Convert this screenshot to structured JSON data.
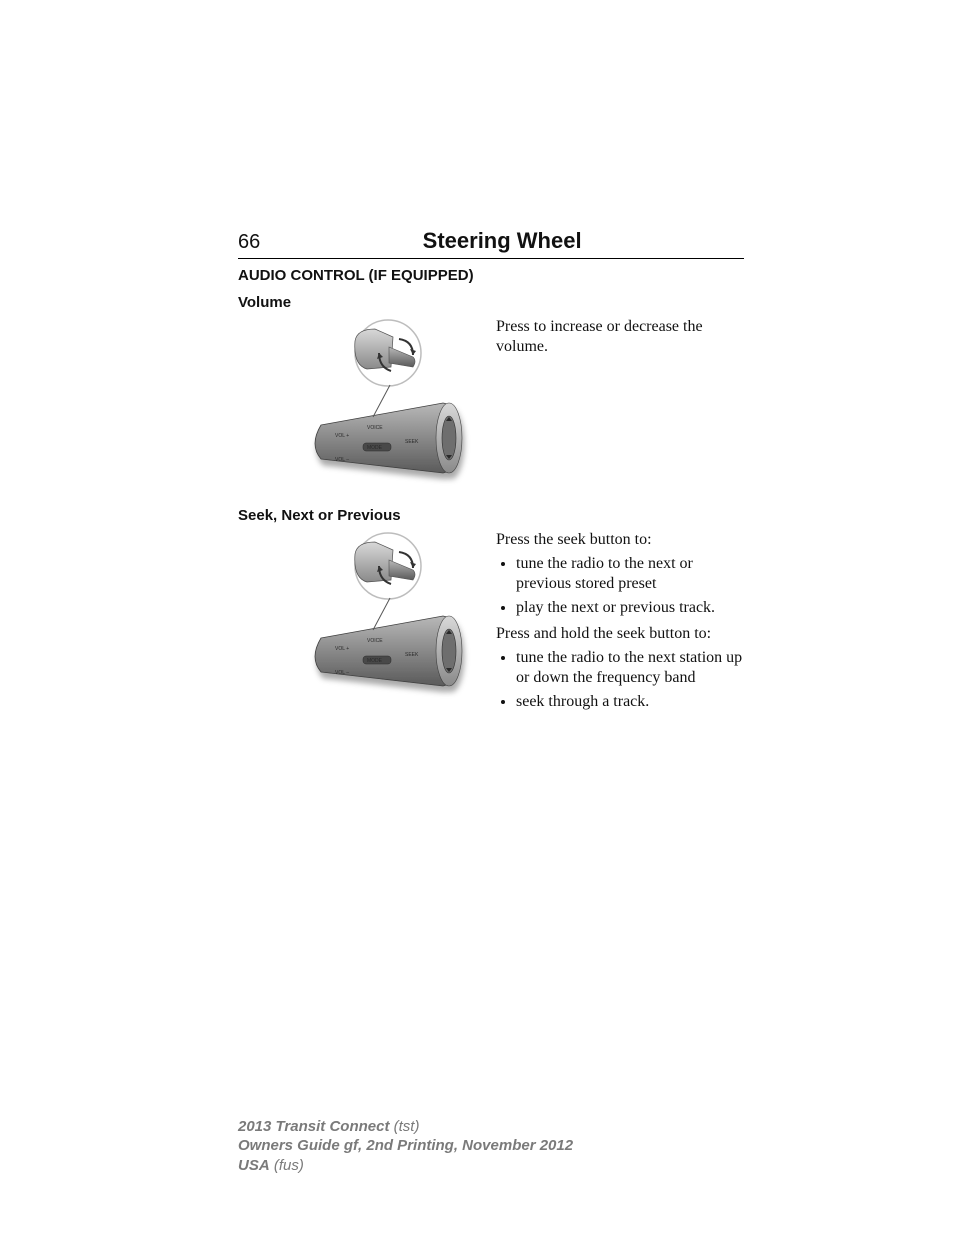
{
  "page_number": "66",
  "page_title": "Steering Wheel",
  "section_heading": "AUDIO CONTROL (IF EQUIPPED)",
  "sections": [
    {
      "heading": "Volume",
      "intro": "",
      "paras": [
        "Press to increase or decrease the volume."
      ],
      "bullets_a": [],
      "post": "",
      "bullets_b": [],
      "illustration_labels": [
        "VOICE",
        "VOL +",
        "SEEK",
        "MODE",
        "VOL –"
      ]
    },
    {
      "heading": "Seek, Next or Previous",
      "intro": "Press the seek button to:",
      "paras": [],
      "bullets_a": [
        "tune the radio to the next or previous stored preset",
        "play the next or previous track."
      ],
      "post": "Press and hold the seek button to:",
      "bullets_b": [
        "tune the radio to the next station up or down the frequency band",
        "seek through a track."
      ],
      "illustration_labels": [
        "VOICE",
        "VOL +",
        "SEEK",
        "MODE",
        "VOL –"
      ]
    }
  ],
  "footer": {
    "l1a": "2013 Transit Connect",
    "l1b": "(tst)",
    "l2": "Owners Guide gf, 2nd Printing, November 2012",
    "l3a": "USA",
    "l3b": "(fus)"
  },
  "illustration_style": {
    "body_gradient_from": "#b8b8b8",
    "body_gradient_to": "#5a5a5a",
    "knob_gradient_from": "#d8d8d8",
    "knob_gradient_to": "#8a8a8a",
    "circle_fill": "#ffffff",
    "circle_stroke": "#bdbdbd",
    "label_color": "#2a2a2a",
    "label_fontsize": 5.0,
    "arrow_color": "#333333",
    "shadow_color": "#00000055",
    "aspect": "0.9"
  }
}
